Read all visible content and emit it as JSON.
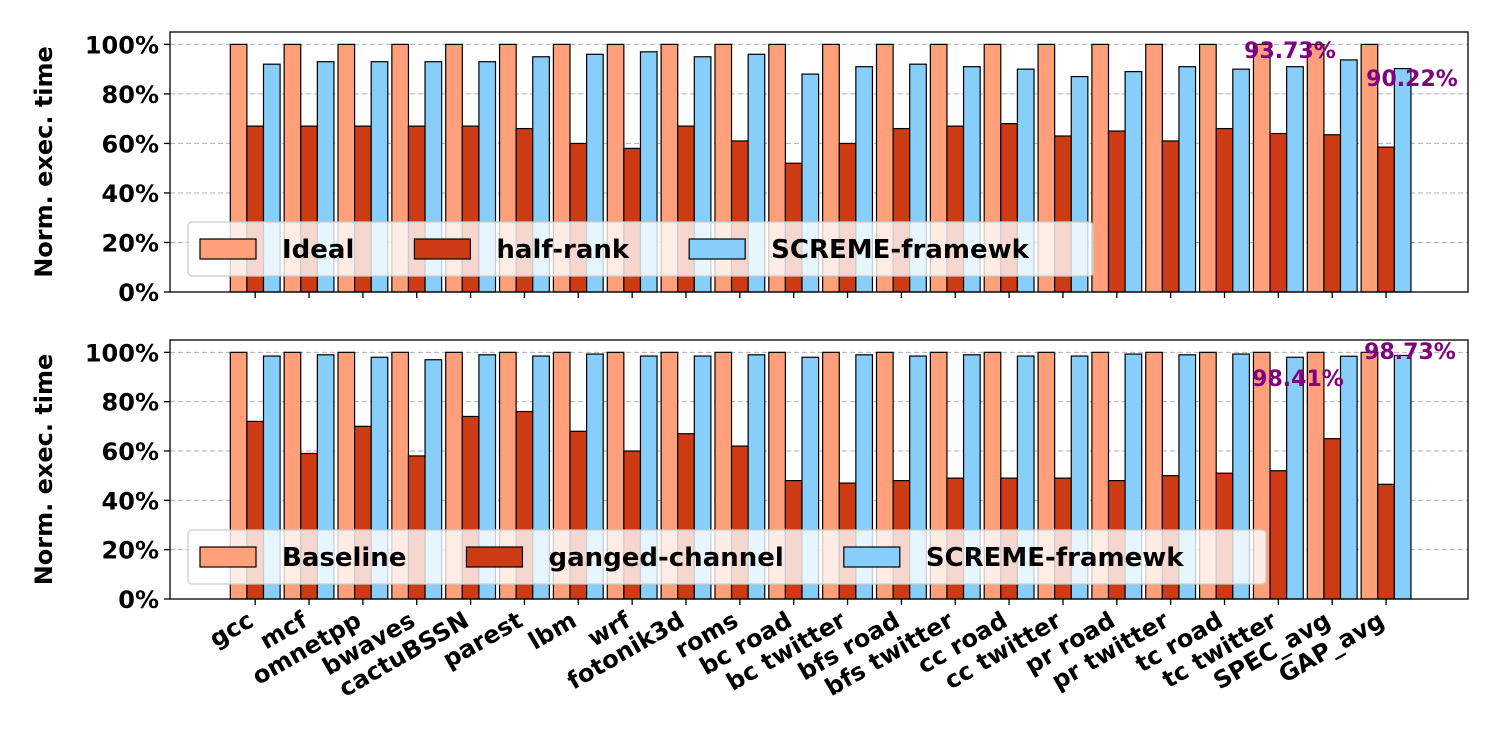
{
  "chart_data": [
    {
      "type": "bar",
      "title": "",
      "xlabel": "",
      "ylabel": "Norm. exec. time",
      "ylim": [
        0,
        105
      ],
      "yticks": [
        "0%",
        "20%",
        "40%",
        "60%",
        "80%",
        "100%"
      ],
      "grid": "horizontal dashed",
      "legend_position": "lower-left",
      "categories": [
        "gcc",
        "mcf",
        "omnetpp",
        "bwaves",
        "cactuBSSN",
        "parest",
        "lbm",
        "wrf",
        "fotonik3d",
        "roms",
        "bc road",
        "bc twitter",
        "bfs road",
        "bfs twitter",
        "cc road",
        "cc twitter",
        "pr road",
        "pr twitter",
        "tc road",
        "tc twitter",
        "SPEC_avg",
        "GAP_avg"
      ],
      "series": [
        {
          "name": "Ideal",
          "color": "#FFA07A",
          "values": [
            100,
            100,
            100,
            100,
            100,
            100,
            100,
            100,
            100,
            100,
            100,
            100,
            100,
            100,
            100,
            100,
            100,
            100,
            100,
            100,
            100,
            100
          ]
        },
        {
          "name": "half-rank",
          "color": "#CC3B14",
          "values": [
            67,
            67,
            67,
            67,
            67,
            66,
            60,
            58,
            67,
            61,
            52,
            60,
            66,
            67,
            68,
            63,
            65,
            61,
            66,
            64,
            63.5,
            58.5
          ]
        },
        {
          "name": "SCREME-framewk",
          "color": "#87CEFA",
          "values": [
            92,
            93,
            93,
            93,
            93,
            95,
            96,
            97,
            95,
            96,
            88,
            91,
            92,
            91,
            90,
            87,
            89,
            91,
            90,
            91,
            93.73,
            90.22
          ]
        }
      ],
      "annotations": [
        {
          "text": "93.73%",
          "category": "SPEC_avg",
          "color": "#800080"
        },
        {
          "text": "90.22%",
          "category": "GAP_avg",
          "color": "#800080"
        }
      ]
    },
    {
      "type": "bar",
      "title": "",
      "xlabel": "",
      "ylabel": "Norm. exec. time",
      "ylim": [
        0,
        105
      ],
      "yticks": [
        "0%",
        "20%",
        "40%",
        "60%",
        "80%",
        "100%"
      ],
      "grid": "horizontal dashed",
      "legend_position": "lower-left",
      "categories": [
        "gcc",
        "mcf",
        "omnetpp",
        "bwaves",
        "cactuBSSN",
        "parest",
        "lbm",
        "wrf",
        "fotonik3d",
        "roms",
        "bc road",
        "bc twitter",
        "bfs road",
        "bfs twitter",
        "cc road",
        "cc twitter",
        "pr road",
        "pr twitter",
        "tc road",
        "tc twitter",
        "SPEC_avg",
        "GAP_avg"
      ],
      "series": [
        {
          "name": "Baseline",
          "color": "#FFA07A",
          "values": [
            100,
            100,
            100,
            100,
            100,
            100,
            100,
            100,
            100,
            100,
            100,
            100,
            100,
            100,
            100,
            100,
            100,
            100,
            100,
            100,
            100,
            100
          ]
        },
        {
          "name": "ganged-channel",
          "color": "#CC3B14",
          "values": [
            72,
            59,
            70,
            58,
            74,
            76,
            68,
            60,
            67,
            62,
            48,
            47,
            48,
            49,
            49,
            49,
            48,
            50,
            51,
            52,
            65,
            46.5
          ]
        },
        {
          "name": "SCREME-framewk",
          "color": "#87CEFA",
          "values": [
            98.5,
            99,
            98,
            97,
            99,
            98.5,
            99.3,
            98.5,
            98.5,
            99,
            98,
            99,
            98.5,
            99,
            98.5,
            98.5,
            99.3,
            99,
            99.3,
            98,
            98.41,
            98.73
          ]
        }
      ],
      "annotations": [
        {
          "text": "98.41%",
          "category": "SPEC_avg",
          "color": "#800080"
        },
        {
          "text": "98.73%",
          "category": "GAP_avg",
          "color": "#800080"
        }
      ]
    }
  ]
}
